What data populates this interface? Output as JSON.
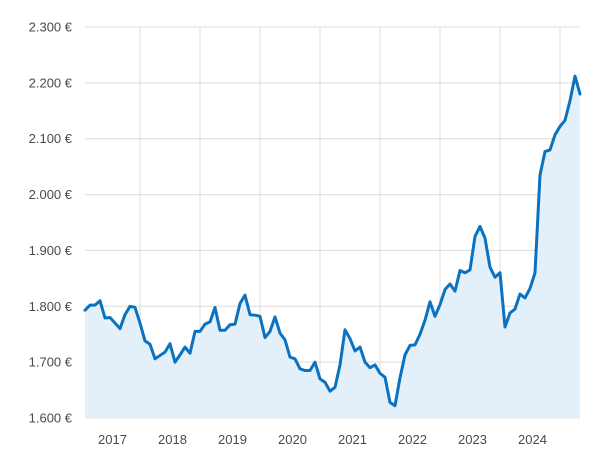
{
  "chart_data": {
    "type": "area",
    "title": "",
    "xlabel": "",
    "ylabel": "",
    "ylim": [
      1600,
      2300
    ],
    "xlim": [
      "2016-08",
      "2024-11"
    ],
    "y_ticks": [
      1600,
      1700,
      1800,
      1900,
      2000,
      2100,
      2200,
      2300
    ],
    "y_tick_labels": [
      "1.600 €",
      "1.700 €",
      "1.800 €",
      "1.900 €",
      "2.000 €",
      "2.100 €",
      "2.200 €",
      "2.300 €"
    ],
    "x_tick_labels": [
      "2017",
      "2018",
      "2019",
      "2020",
      "2021",
      "2022",
      "2023",
      "2024"
    ],
    "grid": true,
    "colors": {
      "line": "#0a72c0",
      "fill": "#e3f0fa",
      "grid": "#dcdcdc",
      "text": "#4a4a4a"
    },
    "series": [
      {
        "x": [
          "2016-08",
          "2016-09",
          "2016-10",
          "2016-11",
          "2016-12",
          "2017-01",
          "2017-02",
          "2017-03",
          "2017-04",
          "2017-05",
          "2017-06",
          "2017-07",
          "2017-08",
          "2017-09",
          "2017-10",
          "2017-11",
          "2017-12",
          "2018-01",
          "2018-02",
          "2018-03",
          "2018-04",
          "2018-05",
          "2018-06",
          "2018-07",
          "2018-08",
          "2018-09",
          "2018-10",
          "2018-11",
          "2018-12",
          "2019-01",
          "2019-02",
          "2019-03",
          "2019-04",
          "2019-05",
          "2019-06",
          "2019-07",
          "2019-08",
          "2019-09",
          "2019-10",
          "2019-11",
          "2019-12",
          "2020-01",
          "2020-02",
          "2020-03",
          "2020-04",
          "2020-05",
          "2020-06",
          "2020-07",
          "2020-08",
          "2020-09",
          "2020-10",
          "2020-11",
          "2020-12",
          "2021-01",
          "2021-02",
          "2021-03",
          "2021-04",
          "2021-05",
          "2021-06",
          "2021-07",
          "2021-08",
          "2021-09",
          "2021-10",
          "2021-11",
          "2021-12",
          "2022-01",
          "2022-02",
          "2022-03",
          "2022-04",
          "2022-05",
          "2022-06",
          "2022-07",
          "2022-08",
          "2022-09",
          "2022-10",
          "2022-11",
          "2022-12",
          "2023-01",
          "2023-02",
          "2023-03",
          "2023-04",
          "2023-05",
          "2023-06",
          "2023-07",
          "2023-08",
          "2023-09",
          "2023-10",
          "2023-11",
          "2023-12",
          "2024-01",
          "2024-02",
          "2024-03",
          "2024-04",
          "2024-05",
          "2024-06",
          "2024-07",
          "2024-08",
          "2024-09",
          "2024-10",
          "2024-11"
        ],
        "values": [
          1793,
          1802,
          1802,
          1810,
          1779,
          1780,
          1770,
          1760,
          1785,
          1800,
          1798,
          1770,
          1738,
          1732,
          1706,
          1712,
          1718,
          1733,
          1700,
          1713,
          1727,
          1716,
          1755,
          1755,
          1768,
          1772,
          1798,
          1757,
          1757,
          1767,
          1768,
          1805,
          1820,
          1785,
          1784,
          1782,
          1744,
          1755,
          1781,
          1752,
          1740,
          1709,
          1706,
          1688,
          1685,
          1685,
          1700,
          1670,
          1664,
          1648,
          1655,
          1695,
          1758,
          1742,
          1720,
          1727,
          1700,
          1690,
          1695,
          1680,
          1673,
          1628,
          1622,
          1672,
          1713,
          1730,
          1731,
          1750,
          1775,
          1808,
          1782,
          1803,
          1830,
          1840,
          1827,
          1864,
          1860,
          1865,
          1925,
          1943,
          1922,
          1870,
          1852,
          1860,
          1763,
          1788,
          1795,
          1822,
          1815,
          1832,
          1860,
          2035,
          2077,
          2080,
          2107,
          2122,
          2133,
          2168,
          2212,
          2180
        ]
      }
    ]
  }
}
